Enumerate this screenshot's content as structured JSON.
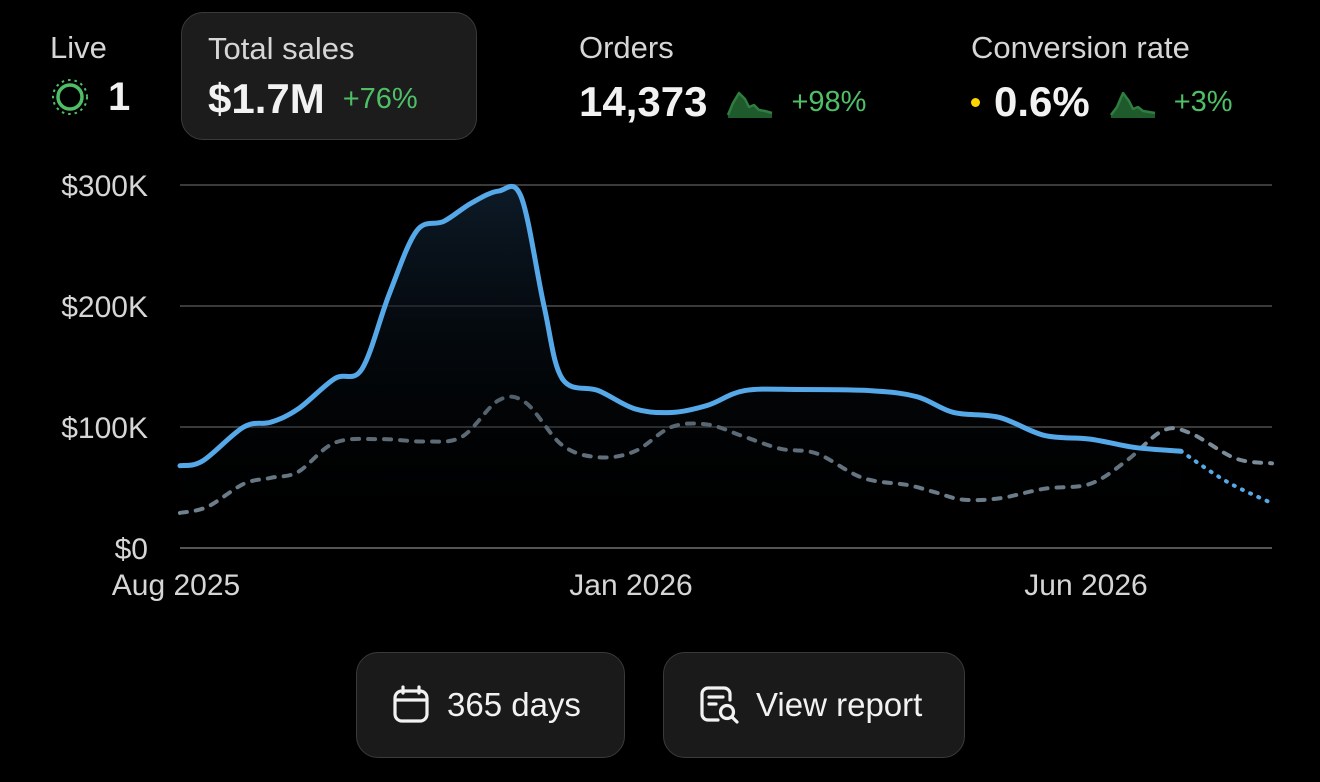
{
  "metrics": {
    "live": {
      "label": "Live",
      "value": "1",
      "icon": "live-pulse-icon",
      "color": "#4fbf67"
    },
    "total_sales": {
      "label": "Total sales",
      "value": "$1.7M",
      "change": "+76%"
    },
    "orders": {
      "label": "Orders",
      "value": "14,373",
      "change": "+98%",
      "icon": "sparkline-icon"
    },
    "conversion": {
      "label": "Conversion rate",
      "value": "0.6%",
      "change": "+3%",
      "icon": "sparkline-icon",
      "dot_color": "#ffd400"
    }
  },
  "buttons": {
    "range": {
      "label": "365 days",
      "icon": "calendar-icon"
    },
    "report": {
      "label": "View report",
      "icon": "report-search-icon"
    }
  },
  "chart_data": {
    "type": "line",
    "ylim": [
      0,
      300000
    ],
    "y_ticks": [
      0,
      100000,
      200000,
      300000
    ],
    "y_tick_labels": [
      "$0",
      "$100K",
      "$200K",
      "$300K"
    ],
    "x_tick_labels": [
      {
        "label": "Aug 2025",
        "x": 0
      },
      {
        "label": "Jan 2026",
        "x": 5
      },
      {
        "label": "Jun 2026",
        "x": 10
      }
    ],
    "xlim": [
      0,
      12
    ],
    "grid": true,
    "series": [
      {
        "color": "#56a9e8",
        "style": "solid",
        "filled": true,
        "projection_from": 11,
        "points": [
          [
            0,
            68000
          ],
          [
            0.25,
            72000
          ],
          [
            0.7,
            100000
          ],
          [
            1.0,
            104000
          ],
          [
            1.3,
            115000
          ],
          [
            1.7,
            140000
          ],
          [
            2.0,
            148000
          ],
          [
            2.3,
            210000
          ],
          [
            2.6,
            262000
          ],
          [
            2.9,
            270000
          ],
          [
            3.2,
            285000
          ],
          [
            3.5,
            295000
          ],
          [
            3.75,
            290000
          ],
          [
            4.0,
            200000
          ],
          [
            4.2,
            140000
          ],
          [
            4.6,
            130000
          ],
          [
            5.0,
            115000
          ],
          [
            5.4,
            112000
          ],
          [
            5.8,
            118000
          ],
          [
            6.2,
            130000
          ],
          [
            6.8,
            131000
          ],
          [
            7.6,
            130000
          ],
          [
            8.1,
            125000
          ],
          [
            8.5,
            112000
          ],
          [
            9.0,
            108000
          ],
          [
            9.5,
            93000
          ],
          [
            10.0,
            90000
          ],
          [
            10.5,
            83000
          ],
          [
            11.0,
            80000
          ],
          [
            11.5,
            55000
          ],
          [
            12.0,
            37000
          ]
        ]
      },
      {
        "color": "#7a8c9a",
        "style": "dashed",
        "filled": false,
        "points": [
          [
            0,
            29000
          ],
          [
            0.3,
            34000
          ],
          [
            0.7,
            53000
          ],
          [
            1.0,
            58000
          ],
          [
            1.3,
            63000
          ],
          [
            1.7,
            87000
          ],
          [
            2.2,
            90000
          ],
          [
            2.7,
            88000
          ],
          [
            3.1,
            92000
          ],
          [
            3.5,
            122000
          ],
          [
            3.8,
            120000
          ],
          [
            4.2,
            85000
          ],
          [
            4.6,
            75000
          ],
          [
            5.0,
            80000
          ],
          [
            5.4,
            100000
          ],
          [
            5.8,
            102000
          ],
          [
            6.2,
            92000
          ],
          [
            6.6,
            82000
          ],
          [
            7.0,
            78000
          ],
          [
            7.5,
            58000
          ],
          [
            8.0,
            52000
          ],
          [
            8.3,
            46000
          ],
          [
            8.6,
            40000
          ],
          [
            9.0,
            41000
          ],
          [
            9.5,
            49000
          ],
          [
            10.0,
            53000
          ],
          [
            10.4,
            72000
          ],
          [
            10.8,
            97000
          ],
          [
            11.1,
            95000
          ],
          [
            11.6,
            74000
          ],
          [
            12.0,
            70000
          ]
        ]
      }
    ]
  }
}
